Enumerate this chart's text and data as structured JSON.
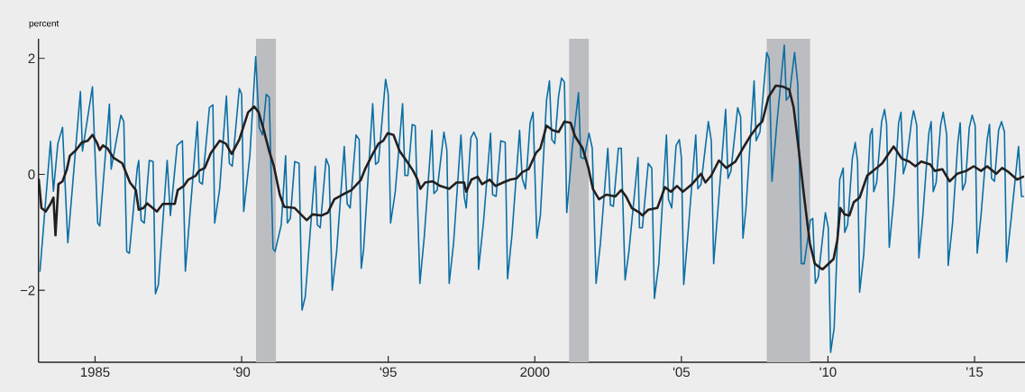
{
  "chart_data": {
    "type": "line",
    "ylabel": "percent",
    "xlim": [
      1983.07,
      2016.72
    ],
    "ylim": [
      -3.24,
      2.34
    ],
    "xticks": [
      1985,
      {
        "value": 1990,
        "label": "'90"
      },
      {
        "value": 1995,
        "label": "'95"
      },
      2000,
      {
        "value": 2005,
        "label": "'05"
      },
      {
        "value": 2010,
        "label": "'10"
      },
      {
        "value": 2015,
        "label": "'15"
      }
    ],
    "yticks": [
      {
        "value": -2,
        "label": "−2"
      },
      0,
      2
    ],
    "bands": [
      {
        "axis": "x",
        "from": 1990.49,
        "to": 1991.17,
        "color": "#bcbdc1"
      },
      {
        "axis": "x",
        "from": 2001.17,
        "to": 2001.84,
        "color": "#bcbdc1"
      },
      {
        "axis": "x",
        "from": 2007.91,
        "to": 2009.39,
        "color": "#bcbdc1"
      }
    ],
    "series": [
      {
        "color": "#0a6fa4",
        "x": [
          1983.12,
          1983.48,
          1983.58,
          1983.73,
          1983.89,
          1984.07,
          1984.5,
          1984.57,
          1984.91,
          1985.09,
          1985.16,
          1985.49,
          1985.55,
          1985.88,
          1985.98,
          1986.08,
          1986.17,
          1986.44,
          1986.49,
          1986.57,
          1986.68,
          1986.85,
          1986.98,
          1987.06,
          1987.16,
          1987.46,
          1987.57,
          1987.8,
          1987.98,
          1988.08,
          1988.49,
          1988.56,
          1988.66,
          1988.9,
          1989.02,
          1989.08,
          1989.25,
          1989.48,
          1989.58,
          1989.68,
          1989.92,
          1990.0,
          1990.07,
          1990.28,
          1990.48,
          1990.6,
          1990.71,
          1990.84,
          1990.94,
          1991.07,
          1991.14,
          1991.35,
          1991.5,
          1991.56,
          1991.66,
          1991.81,
          1991.96,
          1992.06,
          1992.17,
          1992.51,
          1992.58,
          1992.68,
          1992.88,
          1992.98,
          1993.09,
          1993.24,
          1993.5,
          1993.6,
          1993.7,
          1993.9,
          1994.01,
          1994.08,
          1994.16,
          1994.47,
          1994.57,
          1994.67,
          1994.91,
          1995.0,
          1995.08,
          1995.24,
          1995.49,
          1995.57,
          1995.67,
          1995.82,
          1995.92,
          1996.08,
          1996.23,
          1996.49,
          1996.56,
          1996.67,
          1996.9,
          1997.0,
          1997.08,
          1997.23,
          1997.48,
          1997.59,
          1997.66,
          1997.82,
          1997.92,
          1998.03,
          1998.08,
          1998.25,
          1998.49,
          1998.56,
          1998.68,
          1998.84,
          1998.99,
          1999.07,
          1999.22,
          1999.48,
          1999.57,
          1999.68,
          1999.84,
          1999.94,
          2000.07,
          2000.19,
          2000.4,
          2000.5,
          2000.58,
          2000.68,
          2000.81,
          2000.91,
          2001.01,
          2001.09,
          2001.27,
          2001.49,
          2001.57,
          2001.68,
          2001.85,
          2001.96,
          2002.09,
          2002.24,
          2002.49,
          2002.58,
          2002.68,
          2002.85,
          2002.95,
          2003.08,
          2003.21,
          2003.52,
          2003.57,
          2003.67,
          2003.87,
          2003.99,
          2004.08,
          2004.23,
          2004.49,
          2004.56,
          2004.67,
          2004.82,
          2004.93,
          2005.0,
          2005.08,
          2005.2,
          2005.49,
          2005.56,
          2005.67,
          2005.92,
          2006.02,
          2006.1,
          2006.23,
          2006.51,
          2006.59,
          2006.69,
          2006.92,
          2007.02,
          2007.1,
          2007.2,
          2007.48,
          2007.55,
          2007.68,
          2007.91,
          2007.99,
          2008.09,
          2008.25,
          2008.51,
          2008.58,
          2008.68,
          2008.86,
          2008.97,
          2009.09,
          2009.19,
          2009.4,
          2009.48,
          2009.57,
          2009.67,
          2009.91,
          2010.01,
          2010.09,
          2010.21,
          2010.4,
          2010.52,
          2010.57,
          2010.67,
          2010.83,
          2010.93,
          2011.01,
          2011.08,
          2011.22,
          2011.44,
          2011.51,
          2011.56,
          2011.66,
          2011.83,
          2011.93,
          2012.0,
          2012.09,
          2012.24,
          2012.41,
          2012.49,
          2012.57,
          2012.67,
          2012.85,
          2012.92,
          2013.03,
          2013.1,
          2013.23,
          2013.44,
          2013.52,
          2013.59,
          2013.69,
          2013.84,
          2013.93,
          2014.05,
          2014.1,
          2014.25,
          2014.43,
          2014.51,
          2014.59,
          2014.69,
          2014.82,
          2014.92,
          2015.02,
          2015.09,
          2015.22,
          2015.43,
          2015.51,
          2015.58,
          2015.68,
          2015.82,
          2015.92,
          2016.02,
          2016.09,
          2016.25,
          2016.5,
          2016.6,
          2016.67
        ],
        "values": [
          -1.67,
          0.57,
          -0.29,
          0.53,
          0.81,
          -1.18,
          1.43,
          0.4,
          1.51,
          -0.84,
          -0.89,
          1.21,
          0.09,
          1.02,
          0.91,
          -1.33,
          -1.36,
          0.11,
          0.24,
          -0.79,
          -0.84,
          0.24,
          0.22,
          -2.06,
          -1.9,
          0.24,
          -0.71,
          0.5,
          0.58,
          -1.67,
          0.91,
          -0.13,
          -0.17,
          1.15,
          1.2,
          -0.84,
          -0.25,
          1.35,
          0.19,
          0.14,
          1.48,
          1.38,
          -0.64,
          0.32,
          2.03,
          0.81,
          0.68,
          1.38,
          1.33,
          -1.28,
          -1.33,
          -0.87,
          0.32,
          -0.84,
          -0.76,
          0.22,
          0.19,
          -2.34,
          -2.11,
          0.14,
          -0.87,
          -0.92,
          0.27,
          0.14,
          -2.0,
          -1.33,
          0.48,
          -0.51,
          -0.58,
          0.68,
          0.6,
          -1.62,
          -1.3,
          1.22,
          0.17,
          0.22,
          1.64,
          1.38,
          -0.84,
          -0.3,
          1.22,
          -0.02,
          -0.02,
          0.86,
          0.84,
          -1.88,
          -1.07,
          0.76,
          -0.33,
          -0.27,
          0.73,
          0.42,
          -1.88,
          -1.18,
          0.68,
          -0.38,
          -0.58,
          0.63,
          0.73,
          0.6,
          -1.64,
          -0.82,
          0.71,
          -0.35,
          -0.38,
          0.58,
          0.55,
          -1.8,
          -1.05,
          0.76,
          -0.07,
          -0.25,
          0.89,
          1.07,
          -1.1,
          -0.71,
          1.28,
          1.61,
          0.6,
          0.53,
          1.35,
          1.66,
          1.59,
          -0.66,
          0.42,
          1.41,
          0.29,
          0.27,
          0.71,
          0.45,
          -1.88,
          -1.18,
          0.45,
          -0.53,
          -0.55,
          0.45,
          0.45,
          -1.82,
          -1.33,
          0.29,
          -0.92,
          -0.92,
          0.19,
          0.11,
          -2.14,
          -1.54,
          0.68,
          -0.43,
          -0.58,
          0.5,
          0.6,
          0.29,
          -1.9,
          -1.18,
          0.68,
          -0.25,
          -0.17,
          0.91,
          0.58,
          -1.54,
          -0.71,
          1.12,
          -0.07,
          0.06,
          1.15,
          0.99,
          -1.1,
          -0.61,
          1.61,
          0.58,
          0.73,
          2.1,
          2.0,
          -0.12,
          0.84,
          2.23,
          1.28,
          1.35,
          2.1,
          1.56,
          -1.54,
          -1.54,
          -0.79,
          -0.76,
          -1.88,
          -1.77,
          -0.66,
          -0.92,
          -3.07,
          -2.65,
          -0.09,
          0.11,
          -1.0,
          -0.87,
          0.27,
          0.55,
          0.22,
          -2.03,
          -1.38,
          0.68,
          0.79,
          -0.3,
          -0.14,
          0.91,
          1.12,
          0.86,
          -1.26,
          -0.45,
          0.89,
          1.07,
          0.01,
          0.19,
          0.91,
          1.1,
          0.84,
          -1.44,
          -0.74,
          0.71,
          0.91,
          -0.3,
          -0.14,
          0.84,
          1.07,
          0.68,
          -1.57,
          -0.84,
          0.55,
          0.89,
          -0.27,
          -0.14,
          0.81,
          1.02,
          0.84,
          -1.36,
          -0.71,
          0.6,
          0.86,
          -0.07,
          -0.12,
          0.76,
          0.91,
          0.73,
          -1.51,
          -0.76,
          0.48,
          -0.38,
          -0.38
        ]
      },
      {
        "color": "#231f20",
        "x": [
          1983.08,
          1983.17,
          1983.32,
          1983.48,
          1983.58,
          1983.65,
          1983.75,
          1983.89,
          1984.04,
          1984.14,
          1984.35,
          1984.55,
          1984.75,
          1984.91,
          1985.06,
          1985.16,
          1985.27,
          1985.42,
          1985.62,
          1985.93,
          1986.19,
          1986.39,
          1986.49,
          1986.65,
          1986.78,
          1987.11,
          1987.31,
          1987.72,
          1987.82,
          1988.03,
          1988.18,
          1988.44,
          1988.54,
          1988.74,
          1988.95,
          1989.25,
          1989.46,
          1989.66,
          1989.92,
          1990.22,
          1990.43,
          1990.58,
          1990.74,
          1990.94,
          1991.1,
          1991.3,
          1991.45,
          1991.81,
          1992.02,
          1992.22,
          1992.42,
          1992.73,
          1992.94,
          1993.16,
          1993.44,
          1993.75,
          1994.06,
          1994.21,
          1994.47,
          1994.67,
          1994.83,
          1994.98,
          1995.18,
          1995.39,
          1995.64,
          1995.85,
          1996.0,
          1996.1,
          1996.26,
          1996.51,
          1996.77,
          1997.08,
          1997.33,
          1997.59,
          1997.66,
          1997.84,
          1998.05,
          1998.2,
          1998.46,
          1998.66,
          1998.92,
          1999.17,
          1999.38,
          1999.58,
          1999.79,
          2000.04,
          2000.19,
          2000.4,
          2000.61,
          2000.81,
          2001.01,
          2001.22,
          2001.37,
          2001.63,
          2001.83,
          2001.98,
          2002.19,
          2002.44,
          2002.75,
          2002.95,
          2003.11,
          2003.31,
          2003.57,
          2003.67,
          2003.87,
          2004.18,
          2004.44,
          2004.64,
          2004.85,
          2005.05,
          2005.36,
          2005.67,
          2005.82,
          2006.02,
          2006.28,
          2006.53,
          2006.84,
          2007.1,
          2007.35,
          2007.61,
          2007.76,
          2007.97,
          2008.22,
          2008.48,
          2008.68,
          2008.83,
          2008.99,
          2009.19,
          2009.38,
          2009.55,
          2009.81,
          2009.96,
          2010.19,
          2010.32,
          2010.42,
          2010.57,
          2010.73,
          2010.88,
          2011.08,
          2011.34,
          2011.54,
          2011.85,
          2012.06,
          2012.24,
          2012.52,
          2012.77,
          2012.98,
          2013.18,
          2013.49,
          2013.64,
          2013.9,
          2014.15,
          2014.41,
          2014.72,
          2014.97,
          2015.22,
          2015.43,
          2015.74,
          2015.94,
          2016.16,
          2016.45,
          2016.66
        ],
        "values": [
          -0.09,
          -0.58,
          -0.64,
          -0.51,
          -0.4,
          -1.05,
          -0.17,
          -0.12,
          0.09,
          0.32,
          0.42,
          0.55,
          0.58,
          0.68,
          0.55,
          0.42,
          0.5,
          0.45,
          0.29,
          0.19,
          -0.14,
          -0.27,
          -0.61,
          -0.58,
          -0.5,
          -0.64,
          -0.51,
          -0.51,
          -0.27,
          -0.2,
          -0.09,
          -0.02,
          0.06,
          0.11,
          0.37,
          0.58,
          0.53,
          0.35,
          0.6,
          1.07,
          1.17,
          1.07,
          0.79,
          0.4,
          0.14,
          -0.35,
          -0.56,
          -0.58,
          -0.69,
          -0.79,
          -0.69,
          -0.71,
          -0.66,
          -0.43,
          -0.35,
          -0.27,
          -0.1,
          0.09,
          0.35,
          0.53,
          0.58,
          0.71,
          0.68,
          0.4,
          0.22,
          0.06,
          -0.09,
          -0.25,
          -0.14,
          -0.12,
          -0.2,
          -0.25,
          -0.14,
          -0.14,
          -0.3,
          -0.09,
          -0.04,
          -0.17,
          -0.09,
          -0.2,
          -0.14,
          -0.09,
          -0.07,
          0.04,
          0.09,
          0.37,
          0.45,
          0.84,
          0.76,
          0.73,
          0.91,
          0.89,
          0.66,
          0.45,
          0.11,
          -0.25,
          -0.43,
          -0.35,
          -0.38,
          -0.27,
          -0.38,
          -0.58,
          -0.66,
          -0.71,
          -0.61,
          -0.58,
          -0.22,
          -0.3,
          -0.2,
          -0.3,
          -0.17,
          0.01,
          -0.14,
          -0.02,
          0.24,
          0.11,
          0.22,
          0.45,
          0.66,
          0.84,
          0.91,
          1.33,
          1.53,
          1.51,
          1.46,
          1.15,
          0.48,
          -0.4,
          -1.18,
          -1.54,
          -1.64,
          -1.57,
          -1.46,
          -1.13,
          -0.58,
          -0.69,
          -0.71,
          -0.48,
          -0.4,
          -0.02,
          0.06,
          0.19,
          0.35,
          0.48,
          0.27,
          0.22,
          0.14,
          0.22,
          0.17,
          0.06,
          0.09,
          -0.12,
          0.01,
          0.06,
          0.14,
          0.06,
          0.14,
          0.01,
          0.11,
          0.04,
          -0.09,
          -0.04
        ]
      }
    ]
  }
}
